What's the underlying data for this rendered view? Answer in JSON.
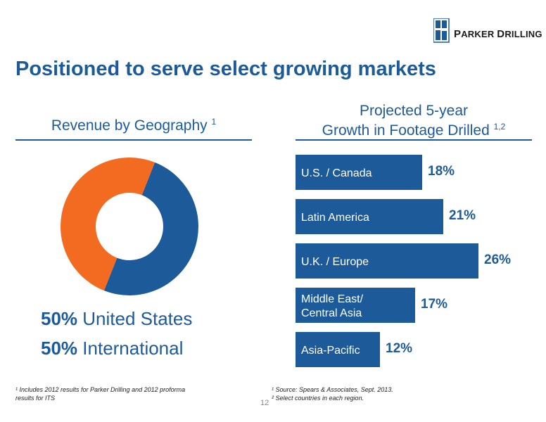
{
  "logo": {
    "name": "PARKER DRILLING",
    "brand_color": "#1c5a99"
  },
  "title": "Positioned to serve select growing markets",
  "left_panel": {
    "heading": "Revenue by Geography",
    "heading_sup": "1",
    "shares": [
      {
        "pct": "50%",
        "label": "United States"
      },
      {
        "pct": "50%",
        "label": "International"
      }
    ]
  },
  "right_panel": {
    "heading_line1": "Projected 5-year",
    "heading_line2": "Growth in Footage Drilled",
    "heading_sup": "1,2"
  },
  "chart_data": [
    {
      "type": "pie",
      "style": "donut",
      "title": "Revenue by Geography",
      "slices": [
        {
          "label": "United States",
          "value": 50,
          "color": "#1c5a99"
        },
        {
          "label": "International",
          "value": 50,
          "color": "#f26b21"
        }
      ]
    },
    {
      "type": "bar",
      "orientation": "horizontal",
      "title": "Projected 5-year Growth in Footage Drilled",
      "categories": [
        "U.S. / Canada",
        "Latin America",
        "U.K. / Europe",
        "Middle East/ Central Asia",
        "Asia-Pacific"
      ],
      "category_lines": [
        [
          "U.S. / Canada"
        ],
        [
          "Latin America"
        ],
        [
          "U.K. / Europe"
        ],
        [
          "Middle East/",
          "Central Asia"
        ],
        [
          "Asia-Pacific"
        ]
      ],
      "values": [
        18,
        21,
        26,
        17,
        12
      ],
      "value_labels": [
        "18%",
        "21%",
        "26%",
        "17%",
        "12%"
      ],
      "unit": "%",
      "bar_color": "#1c5a99",
      "label_color": "#1c5a99",
      "grid": false
    }
  ],
  "footnotes": {
    "left": [
      "¹ Includes 2012 results for Parker Drilling and 2012 proforma",
      "results for ITS"
    ],
    "right": [
      "¹ Source: Spears & Associates, Sept. 2013.",
      "² Select countries in each region."
    ]
  },
  "page_number": "12"
}
